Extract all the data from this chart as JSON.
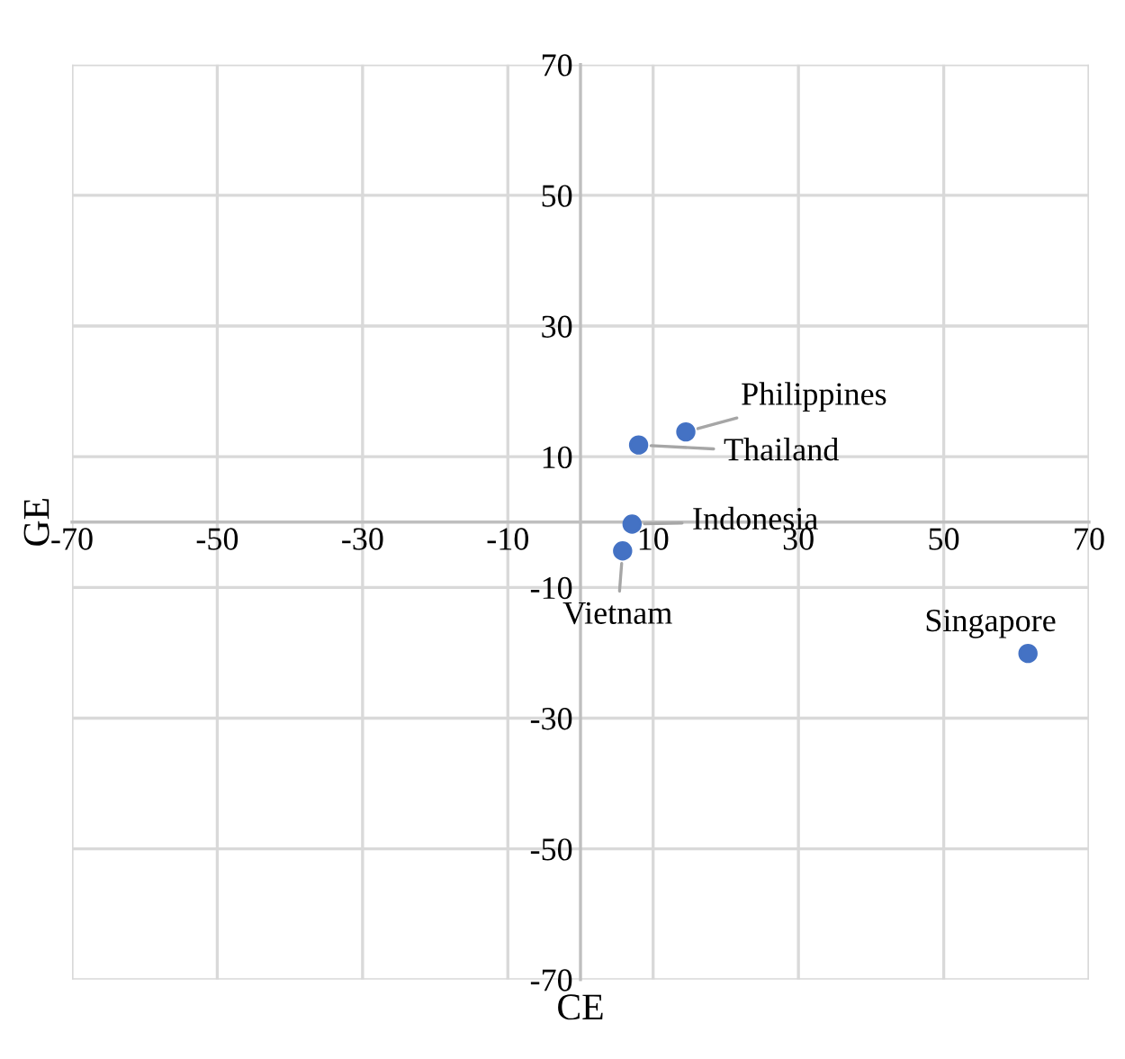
{
  "chart_data": {
    "type": "scatter",
    "xlabel": "CE",
    "ylabel": "GE",
    "x": [
      14.5,
      8.0,
      7.1,
      5.8,
      61.6
    ],
    "series": [
      {
        "color": "#4472c4",
        "values": [
          13.8,
          11.8,
          -0.3,
          -4.4,
          -20.1
        ]
      }
    ],
    "annotations": [
      {
        "text": "Philippines",
        "x": 14.5,
        "y": 13.8
      },
      {
        "text": "Thailand",
        "x": 8.0,
        "y": 11.8
      },
      {
        "text": "Indonesia",
        "x": 7.1,
        "y": -0.3
      },
      {
        "text": "Vietnam",
        "x": 5.8,
        "y": -4.4
      },
      {
        "text": "Singapore",
        "x": 61.6,
        "y": -20.1
      }
    ],
    "xlim": [
      -70,
      70
    ],
    "ylim": [
      -70,
      70
    ],
    "xticks": [
      -70,
      -50,
      -30,
      -10,
      10,
      30,
      50,
      70
    ],
    "yticks": [
      -70,
      -50,
      -30,
      -10,
      10,
      30,
      50,
      70
    ],
    "grid": true,
    "marker": "circle",
    "legend": false
  }
}
